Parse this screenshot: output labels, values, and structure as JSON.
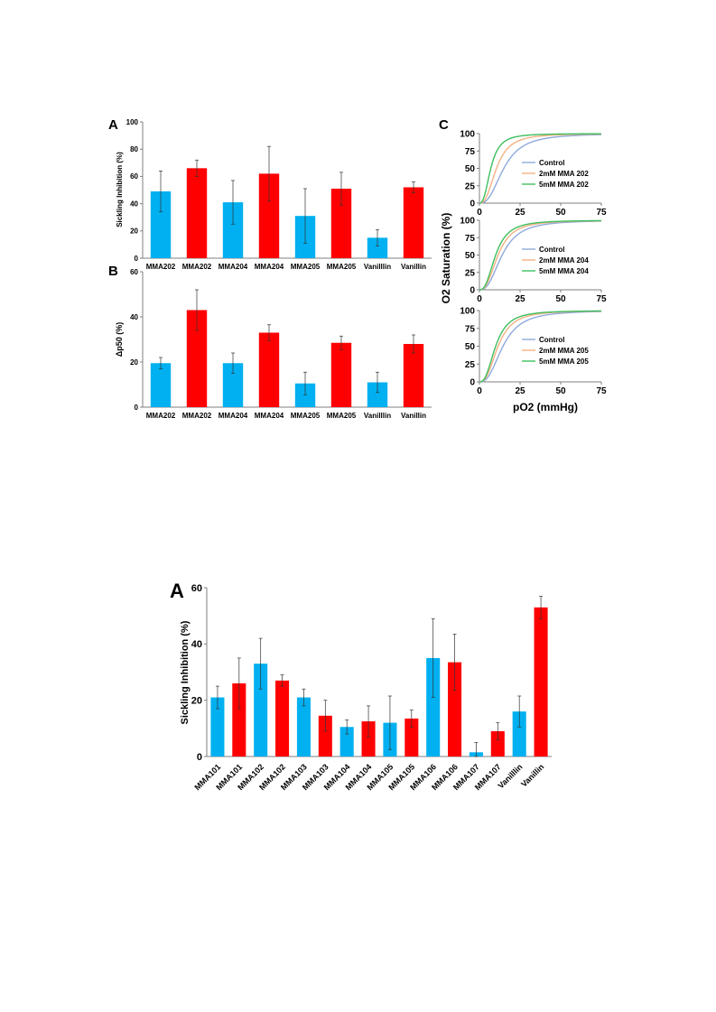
{
  "colors": {
    "blue": "#00B0F0",
    "red": "#FF0000",
    "axis": "#7f7f7f",
    "control": "#8FAADC",
    "mm2": "#F4B183",
    "mm5": "#3FBF5F"
  },
  "panels": {
    "a1": "A",
    "b": "B",
    "c": "C",
    "a2": "A"
  },
  "chart_data": [
    {
      "type": "bar",
      "panel": "A",
      "categories": [
        "MMA202",
        "MMA202",
        "MMA204",
        "MMA204",
        "MMA205",
        "MMA205",
        "Vanilllin",
        "Vanillin"
      ],
      "values": [
        49,
        66,
        41,
        62,
        31,
        51,
        15,
        52
      ],
      "errors": [
        15,
        6,
        16,
        20,
        20,
        12,
        6,
        4
      ],
      "bar_colors": [
        "blue",
        "red",
        "blue",
        "red",
        "blue",
        "red",
        "blue",
        "red"
      ],
      "ylabel": "Sickling Inhibition (%)",
      "ylim": [
        0,
        100
      ],
      "yticks": [
        "0",
        "20",
        "40",
        "60",
        "80",
        "100"
      ],
      "grid": false
    },
    {
      "type": "bar",
      "panel": "B",
      "categories": [
        "MMA202",
        "MMA202",
        "MMA204",
        "MMA204",
        "MMA205",
        "MMA205",
        "Vanilllin",
        "Vanillin"
      ],
      "values": [
        19.5,
        43,
        19.5,
        33,
        10.5,
        28.5,
        11,
        28
      ],
      "errors": [
        2.5,
        9,
        4.5,
        3.5,
        5,
        3,
        4.5,
        4
      ],
      "bar_colors": [
        "blue",
        "red",
        "blue",
        "red",
        "blue",
        "red",
        "blue",
        "red"
      ],
      "ylabel": "Δp50 (%)",
      "ylim": [
        0,
        60
      ],
      "yticks": [
        "0",
        "20",
        "40",
        "60"
      ],
      "grid": false
    },
    {
      "type": "line",
      "panel": "C",
      "ylabel": "O2 Saturation (%)",
      "xlabel": "pO2 (mmHg)",
      "xlim": [
        0,
        75
      ],
      "ylim": [
        0,
        100
      ],
      "xticks": [
        "0",
        "25",
        "50",
        "75"
      ],
      "yticks": [
        "0",
        "25",
        "50",
        "75",
        "100"
      ],
      "subplots": [
        {
          "series": [
            {
              "name": "Control",
              "color": "control",
              "p50": 15,
              "n": 2.6
            },
            {
              "name": "2mM MMA 202",
              "color": "mm2",
              "p50": 10.5,
              "n": 2.6
            },
            {
              "name": "5mM MMA 202",
              "color": "mm5",
              "p50": 7,
              "n": 2.6
            }
          ]
        },
        {
          "series": [
            {
              "name": "Control",
              "color": "control",
              "p50": 14,
              "n": 2.6
            },
            {
              "name": "2mM MMA 204",
              "color": "mm2",
              "p50": 11.5,
              "n": 2.6
            },
            {
              "name": "5mM MMA 204",
              "color": "mm5",
              "p50": 10,
              "n": 2.6
            }
          ]
        },
        {
          "series": [
            {
              "name": "Control",
              "color": "control",
              "p50": 14.5,
              "n": 2.6
            },
            {
              "name": "2mM MMA 205",
              "color": "mm2",
              "p50": 11.5,
              "n": 2.6
            },
            {
              "name": "5mM MMA 205",
              "color": "mm5",
              "p50": 10,
              "n": 2.6
            }
          ]
        }
      ]
    },
    {
      "type": "bar",
      "panel": "A",
      "categories": [
        "MMA101",
        "MMA101",
        "MMA102",
        "MMA102",
        "MMA103",
        "MMA103",
        "MMA104",
        "MMA104",
        "MMA105",
        "MMA105",
        "MMA106",
        "MMA106",
        "MMA107",
        "MMA107",
        "Vanilllin",
        "Vanillin"
      ],
      "values": [
        21,
        26,
        33,
        27,
        21,
        14.5,
        10.5,
        12.5,
        12,
        13.5,
        35,
        33.5,
        1.5,
        9,
        16,
        53
      ],
      "errors": [
        4,
        9,
        9,
        2,
        3,
        5.5,
        2.5,
        5.5,
        9.5,
        3,
        14,
        10,
        3.5,
        3,
        5.5,
        4
      ],
      "bar_colors": [
        "blue",
        "red",
        "blue",
        "red",
        "blue",
        "red",
        "blue",
        "red",
        "blue",
        "red",
        "blue",
        "red",
        "blue",
        "red",
        "blue",
        "red"
      ],
      "ylabel": "Sickling Inhibition (%)",
      "ylim": [
        0,
        60
      ],
      "yticks": [
        "0",
        "20",
        "40",
        "60"
      ],
      "grid": false
    }
  ]
}
